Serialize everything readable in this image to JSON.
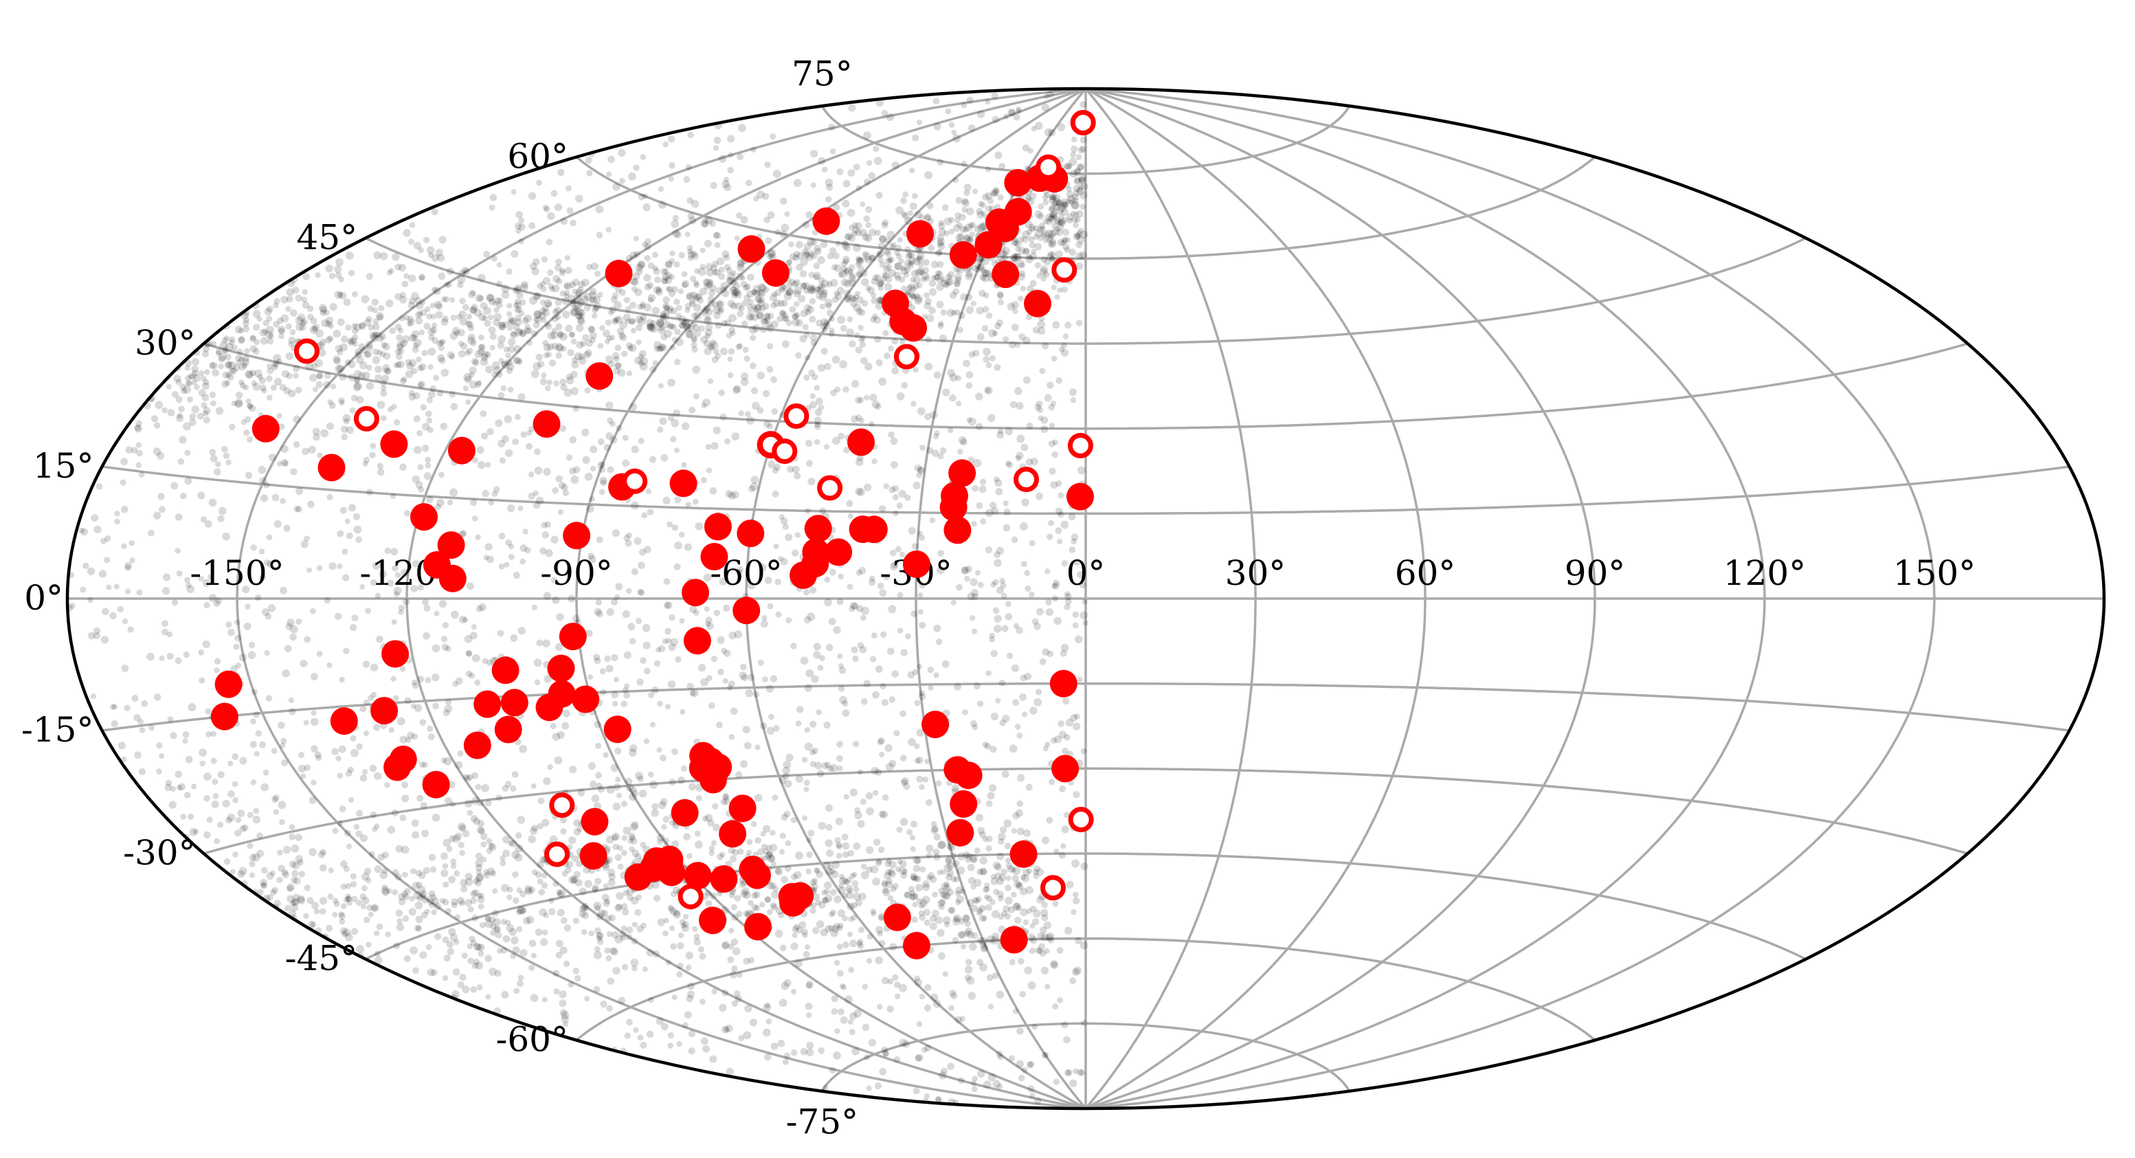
{
  "chart_data": {
    "type": "scatter",
    "projection": "aitoff",
    "title": "",
    "xlabel": "",
    "ylabel": "",
    "xlim": [
      -180,
      180
    ],
    "ylim": [
      -90,
      90
    ],
    "grid": true,
    "x_ticks": [
      -150,
      -120,
      -90,
      -60,
      -30,
      0,
      30,
      60,
      90,
      120,
      150
    ],
    "y_ticks": [
      -75,
      -60,
      -45,
      -30,
      -15,
      0,
      15,
      30,
      45,
      60,
      75
    ],
    "x_tick_labels": [
      "-150°",
      "-120°",
      "-90°",
      "-60°",
      "-30°",
      "0°",
      "30°",
      "60°",
      "90°",
      "120°",
      "150°"
    ],
    "y_tick_labels": [
      "-75°",
      "-60°",
      "-45°",
      "-30°",
      "-15°",
      "0°",
      "15°",
      "30°",
      "45°",
      "60°",
      "75°"
    ],
    "colors": {
      "background_points": "#000000",
      "highlight": "#ff0000",
      "grid": "#aaaaaa",
      "frame": "#000000"
    },
    "series": [
      {
        "marker": "filled-circle",
        "color": "#ff0000",
        "points": [
          [
            -155,
            22
          ],
          [
            -130,
            22
          ],
          [
            -117,
            22
          ],
          [
            -104,
            27
          ],
          [
            -100,
            35
          ],
          [
            -118,
            50
          ],
          [
            -95,
            57
          ],
          [
            -85,
            63
          ],
          [
            -82,
            54
          ],
          [
            -53,
            63
          ],
          [
            -47,
            51
          ],
          [
            -43,
            48
          ],
          [
            -40,
            47
          ],
          [
            -36,
            60
          ],
          [
            -30,
            62
          ],
          [
            -30,
            66
          ],
          [
            -27,
            65
          ],
          [
            -25,
            68
          ],
          [
            -22,
            57
          ],
          [
            -31,
            73
          ],
          [
            -22,
            74
          ],
          [
            -15,
            74
          ],
          [
            -12,
            52
          ],
          [
            -1,
            18
          ],
          [
            -43,
            27
          ],
          [
            -23,
            22
          ],
          [
            -24,
            16
          ],
          [
            -23,
            12
          ],
          [
            -24,
            18
          ],
          [
            -38,
            12
          ],
          [
            -40,
            12
          ],
          [
            -44,
            8
          ],
          [
            -48,
            6
          ],
          [
            -50,
            4
          ],
          [
            -48,
            8
          ],
          [
            -48,
            12
          ],
          [
            -30,
            6
          ],
          [
            -60,
            11
          ],
          [
            -66,
            7
          ],
          [
            -66,
            12
          ],
          [
            -60,
            26
          ],
          [
            -74,
            19
          ],
          [
            -85,
            18
          ],
          [
            -91,
            10
          ],
          [
            -119,
            12
          ],
          [
            -113,
            8
          ],
          [
            -115,
            5
          ],
          [
            -112,
            3
          ],
          [
            -139,
            18
          ],
          [
            -69,
            1
          ],
          [
            -60,
            -2
          ],
          [
            -69,
            -7
          ],
          [
            -91,
            -6
          ],
          [
            -94,
            -11
          ],
          [
            -95,
            -15
          ],
          [
            -104,
            -11
          ],
          [
            -109,
            -16
          ],
          [
            -104,
            -16
          ],
          [
            -91,
            -16
          ],
          [
            -98,
            -17
          ],
          [
            -128,
            -16
          ],
          [
            -136,
            -17
          ],
          [
            -154,
            -11
          ],
          [
            -157,
            -15
          ],
          [
            -123,
            -8
          ],
          [
            -107,
            -20
          ],
          [
            -114,
            -22
          ],
          [
            -129,
            -23
          ],
          [
            -131,
            -24
          ],
          [
            -126,
            -27
          ],
          [
            -87,
            -21
          ],
          [
            -73,
            -26
          ],
          [
            -72,
            -27
          ],
          [
            -71,
            -28
          ],
          [
            -74,
            -28
          ],
          [
            -73,
            -30
          ],
          [
            -101,
            -35
          ],
          [
            -82,
            -35
          ],
          [
            -70,
            -35
          ],
          [
            -75,
            -39
          ],
          [
            -107,
            -40
          ],
          [
            -92,
            -42
          ],
          [
            -95,
            -42
          ],
          [
            -94,
            -43
          ],
          [
            -97,
            -43
          ],
          [
            -94,
            -44
          ],
          [
            -102,
            -44
          ],
          [
            -89,
            -45
          ],
          [
            -84,
            -46
          ],
          [
            -76,
            -45
          ],
          [
            -76,
            -46
          ],
          [
            -72,
            -50
          ],
          [
            -70,
            -50
          ],
          [
            -73,
            -51
          ],
          [
            -96,
            -52
          ],
          [
            -87,
            -54
          ],
          [
            -50,
            -55
          ],
          [
            -50,
            -60
          ],
          [
            -28,
            -22
          ],
          [
            -25,
            -30
          ],
          [
            -23,
            -31
          ],
          [
            -4,
            -15
          ],
          [
            -4,
            -30
          ],
          [
            -25,
            -36
          ],
          [
            -27,
            -41
          ],
          [
            -14,
            -45
          ],
          [
            -21,
            -60
          ]
        ]
      },
      {
        "marker": "open-circle",
        "color": "#ff0000",
        "points": [
          [
            -160,
            32
          ],
          [
            -138,
            25
          ],
          [
            -83,
            19
          ],
          [
            -57,
            31
          ],
          [
            -60,
            26
          ],
          [
            -57,
            25
          ],
          [
            -47,
            19
          ],
          [
            -39,
            42
          ],
          [
            -20,
            76
          ],
          [
            -6,
            58
          ],
          [
            -1,
            27
          ],
          [
            -11,
            21
          ],
          [
            -3,
            84
          ],
          [
            -105,
            -32
          ],
          [
            -114,
            -39
          ],
          [
            -95,
            -48
          ],
          [
            -1,
            -39
          ],
          [
            -8,
            -51
          ]
        ]
      }
    ]
  }
}
